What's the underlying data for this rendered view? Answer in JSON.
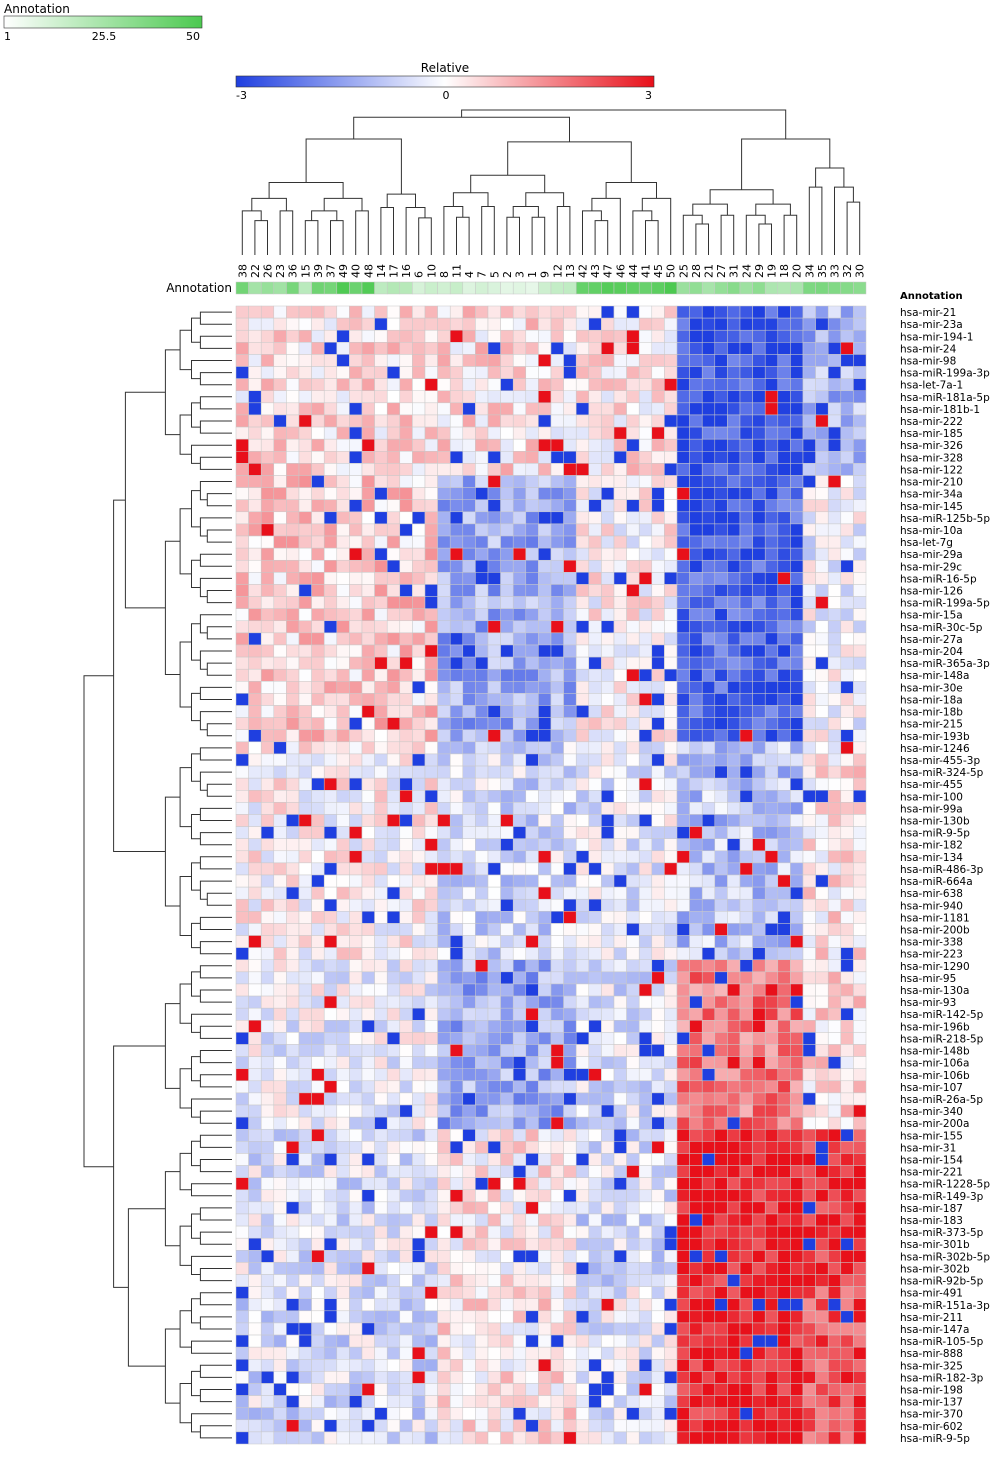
{
  "annotation_legend": {
    "title": "Annotation",
    "min": "1",
    "mid": "25.5",
    "max": "50",
    "colors": [
      "#ffffff",
      "#4cc950"
    ]
  },
  "relative_legend": {
    "title": "Relative",
    "min": "-3",
    "mid": "0",
    "max": "3",
    "colors": [
      "#1f3fe0",
      "#ffffff",
      "#e8101a"
    ]
  },
  "annotation_row_label": "Annotation",
  "annotation_column_title": "Annotation",
  "chart_data": {
    "type": "heatmap",
    "title": "",
    "columns": [
      "38",
      "22",
      "26",
      "23",
      "36",
      "15",
      "39",
      "37",
      "49",
      "40",
      "48",
      "14",
      "17",
      "16",
      "6",
      "10",
      "8",
      "11",
      "4",
      "7",
      "5",
      "2",
      "3",
      "1",
      "9",
      "12",
      "13",
      "42",
      "43",
      "47",
      "46",
      "44",
      "41",
      "45",
      "50",
      "25",
      "28",
      "21",
      "27",
      "31",
      "24",
      "29",
      "19",
      "18",
      "20",
      "34",
      "35",
      "33",
      "32",
      "30"
    ],
    "rows": [
      "hsa-mir-21",
      "hsa-mir-23a",
      "hsa-mir-194-1",
      "hsa-mir-24",
      "hsa-mir-98",
      "hsa-miR-199a-3p",
      "hsa-let-7a-1",
      "hsa-miR-181a-5p",
      "hsa-mir-181b-1",
      "hsa-mir-222",
      "hsa-mir-185",
      "hsa-mir-326",
      "hsa-mir-328",
      "hsa-mir-122",
      "hsa-mir-210",
      "hsa-mir-34a",
      "hsa-mir-145",
      "hsa-miR-125b-5p",
      "hsa-mir-10a",
      "hsa-let-7g",
      "hsa-mir-29a",
      "hsa-mir-29c",
      "hsa-miR-16-5p",
      "hsa-mir-126",
      "hsa-miR-199a-5p",
      "hsa-mir-15a",
      "hsa-miR-30c-5p",
      "hsa-mir-27a",
      "hsa-mir-204",
      "hsa-miR-365a-3p",
      "hsa-mir-148a",
      "hsa-mir-30e",
      "hsa-mir-18a",
      "hsa-mir-18b",
      "hsa-mir-215",
      "hsa-mir-193b",
      "hsa-mir-1246",
      "hsa-mir-455-3p",
      "hsa-miR-324-5p",
      "hsa-mir-455",
      "hsa-mir-100",
      "hsa-mir-99a",
      "hsa-mir-130b",
      "hsa-miR-9-5p",
      "hsa-mir-182",
      "hsa-mir-134",
      "hsa-miR-486-3p",
      "hsa-miR-664a",
      "hsa-mir-638",
      "hsa-mir-940",
      "hsa-mir-1181",
      "hsa-mir-200b",
      "hsa-mir-338",
      "hsa-mir-223",
      "hsa-mir-1290",
      "hsa-mir-95",
      "hsa-mir-130a",
      "hsa-mir-93",
      "hsa-miR-142-5p",
      "hsa-mir-196b",
      "hsa-miR-218-5p",
      "hsa-mir-148b",
      "hsa-mir-106a",
      "hsa-mir-106b",
      "hsa-mir-107",
      "hsa-miR-26a-5p",
      "hsa-mir-340",
      "hsa-mir-200a",
      "hsa-mir-155",
      "hsa-mir-31",
      "hsa-mir-154",
      "hsa-mir-221",
      "hsa-miR-1228-5p",
      "hsa-miR-149-3p",
      "hsa-mir-187",
      "hsa-mir-183",
      "hsa-miR-373-5p",
      "hsa-mir-301b",
      "hsa-miR-302b-5p",
      "hsa-mir-302b",
      "hsa-miR-92b-5p",
      "hsa-mir-491",
      "hsa-miR-151a-3p",
      "hsa-mir-211",
      "hsa-mir-147a",
      "hsa-miR-105-5p",
      "hsa-mir-888",
      "hsa-mir-325",
      "hsa-miR-182-3p",
      "hsa-mir-198",
      "hsa-mir-137",
      "hsa-mir-370",
      "hsa-mir-602",
      "hsa-miR-9-5p"
    ],
    "color_range": [
      -3,
      3
    ],
    "annotation_range": [
      1,
      50
    ],
    "annotation_values": [
      38,
      22,
      26,
      23,
      36,
      15,
      39,
      37,
      49,
      40,
      48,
      14,
      17,
      16,
      6,
      10,
      8,
      11,
      4,
      7,
      5,
      2,
      3,
      1,
      9,
      12,
      13,
      42,
      43,
      47,
      46,
      44,
      41,
      45,
      50,
      25,
      28,
      21,
      27,
      31,
      24,
      29,
      19,
      18,
      20,
      34,
      35,
      33,
      32,
      30
    ],
    "row_groups": [
      {
        "rows": [
          0,
          13
        ],
        "column_blocks": [
          [
            0,
            24,
            0.4
          ],
          [
            24,
            35,
            0.3
          ],
          [
            35,
            45,
            -2.6
          ],
          [
            45,
            50,
            -1.2
          ]
        ]
      },
      {
        "rows": [
          14,
          35
        ],
        "column_blocks": [
          [
            0,
            16,
            0.6
          ],
          [
            16,
            27,
            -1.3
          ],
          [
            27,
            35,
            0.1
          ],
          [
            35,
            45,
            -2.4
          ],
          [
            45,
            50,
            -0.2
          ]
        ]
      },
      {
        "rows": [
          36,
          53
        ],
        "column_blocks": [
          [
            0,
            16,
            0.1
          ],
          [
            16,
            27,
            -0.6
          ],
          [
            27,
            35,
            -0.3
          ],
          [
            35,
            45,
            -0.9
          ],
          [
            45,
            50,
            0.3
          ]
        ]
      },
      {
        "rows": [
          54,
          67
        ],
        "column_blocks": [
          [
            0,
            16,
            -0.2
          ],
          [
            16,
            27,
            -1.3
          ],
          [
            27,
            35,
            -0.4
          ],
          [
            35,
            45,
            1.7
          ],
          [
            45,
            50,
            0.5
          ]
        ]
      },
      {
        "rows": [
          68,
          80
        ],
        "column_blocks": [
          [
            0,
            16,
            -0.4
          ],
          [
            16,
            27,
            0.2
          ],
          [
            27,
            35,
            -0.5
          ],
          [
            35,
            45,
            2.8
          ],
          [
            45,
            50,
            2.6
          ]
        ]
      },
      {
        "rows": [
          81,
          93
        ],
        "column_blocks": [
          [
            0,
            16,
            -0.5
          ],
          [
            16,
            27,
            0.3
          ],
          [
            27,
            35,
            -0.3
          ],
          [
            35,
            45,
            2.8
          ],
          [
            45,
            50,
            2.2
          ]
        ]
      }
    ],
    "xlabel": "",
    "ylabel": "",
    "grid": true,
    "legend_placement": "top"
  }
}
